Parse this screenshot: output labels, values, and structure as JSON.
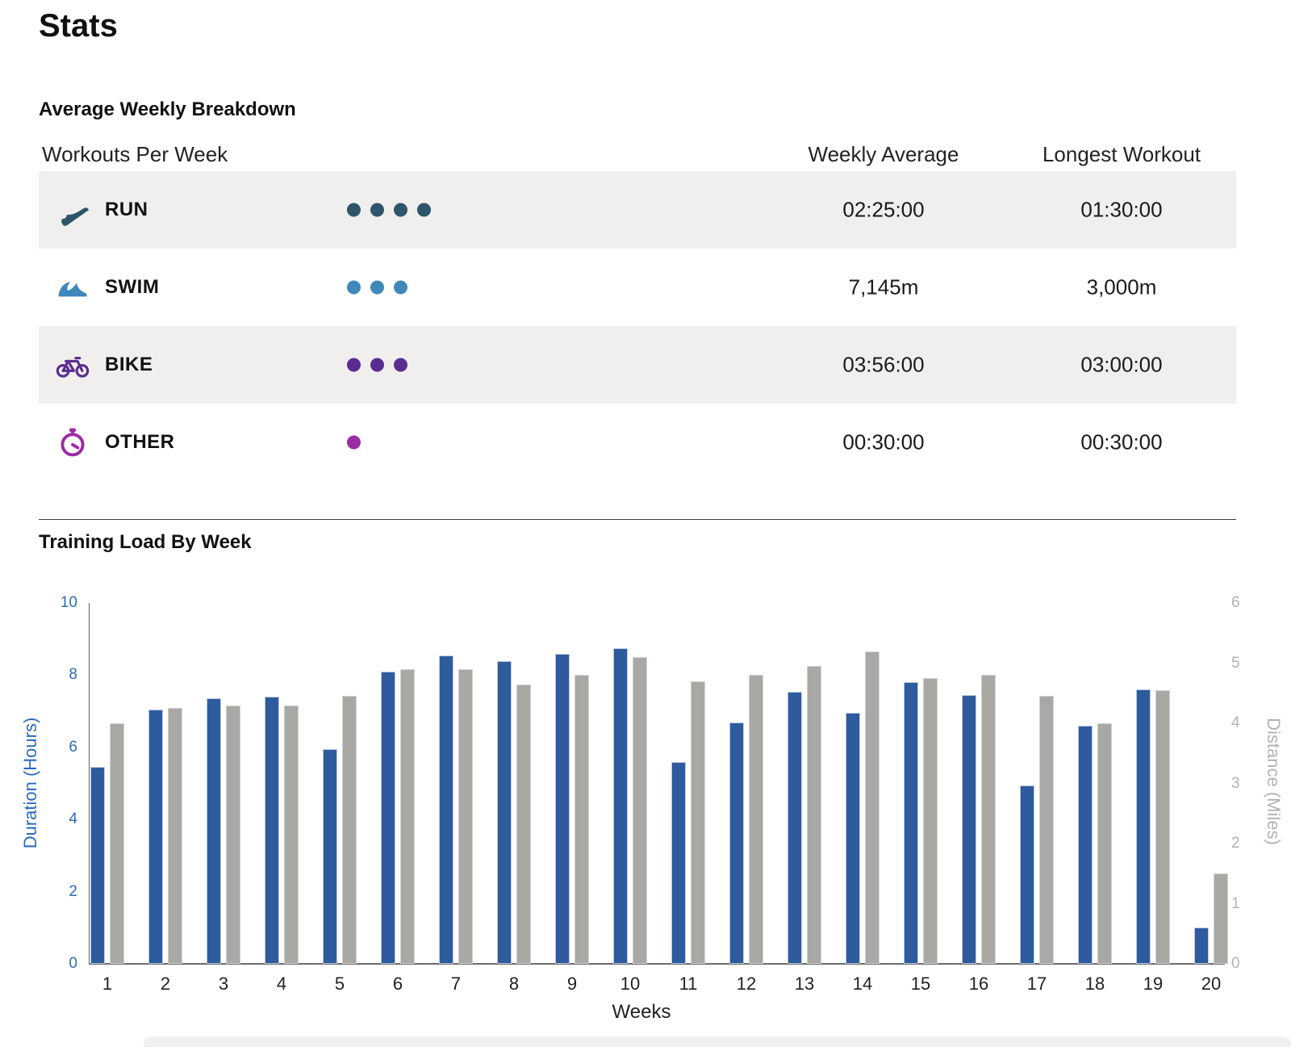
{
  "page": {
    "title": "Stats"
  },
  "breakdown": {
    "section_title": "Average Weekly Breakdown",
    "columns": {
      "workouts": "Workouts Per Week",
      "weekly_average": "Weekly Average",
      "longest_workout": "Longest Workout"
    },
    "rows": [
      {
        "sport": "RUN",
        "icon": "run-shoe-icon",
        "color": "#2e566b",
        "dots": 4,
        "weekly_average": "02:25:00",
        "longest_workout": "01:30:00"
      },
      {
        "sport": "SWIM",
        "icon": "swim-wave-icon",
        "color": "#3f88bc",
        "dots": 3,
        "weekly_average": "7,145m",
        "longest_workout": "3,000m"
      },
      {
        "sport": "BIKE",
        "icon": "bike-icon",
        "color": "#5b2d90",
        "dots": 3,
        "weekly_average": "03:56:00",
        "longest_workout": "03:00:00"
      },
      {
        "sport": "OTHER",
        "icon": "stopwatch-icon",
        "color": "#9c2ba6",
        "dots": 1,
        "weekly_average": "00:30:00",
        "longest_workout": "00:30:00"
      }
    ]
  },
  "chart_data": {
    "type": "bar",
    "title": "Training Load By Week",
    "xlabel": "Weeks",
    "categories": [
      1,
      2,
      3,
      4,
      5,
      6,
      7,
      8,
      9,
      10,
      11,
      12,
      13,
      14,
      15,
      16,
      17,
      18,
      19,
      20
    ],
    "series": [
      {
        "name": "Duration (Hours)",
        "axis": "left",
        "color": "#2d5b9e",
        "values": [
          5.45,
          7.05,
          7.35,
          7.4,
          5.95,
          8.1,
          8.55,
          8.4,
          8.6,
          8.75,
          5.6,
          6.7,
          7.55,
          6.95,
          7.8,
          7.45,
          4.95,
          6.6,
          7.6,
          1.0
        ]
      },
      {
        "name": "Distance (Miles)",
        "axis": "right",
        "color": "#a9a8a5",
        "values": [
          4.0,
          4.25,
          4.3,
          4.3,
          4.45,
          4.9,
          4.9,
          4.65,
          4.8,
          5.1,
          4.7,
          4.8,
          4.95,
          5.2,
          4.75,
          4.8,
          4.45,
          4.0,
          4.55,
          1.5
        ]
      }
    ],
    "left_axis": {
      "label": "Duration (Hours)",
      "min": 0,
      "max": 10,
      "ticks": [
        10,
        8,
        6,
        4,
        2,
        0
      ],
      "color": "#2b6cba"
    },
    "right_axis": {
      "label": "Distance (Miles)",
      "min": 0,
      "max": 6,
      "ticks": [
        6,
        5,
        4,
        3,
        2,
        1,
        0
      ],
      "color": "#b3b2b0"
    },
    "legend": "none",
    "grid": false
  }
}
